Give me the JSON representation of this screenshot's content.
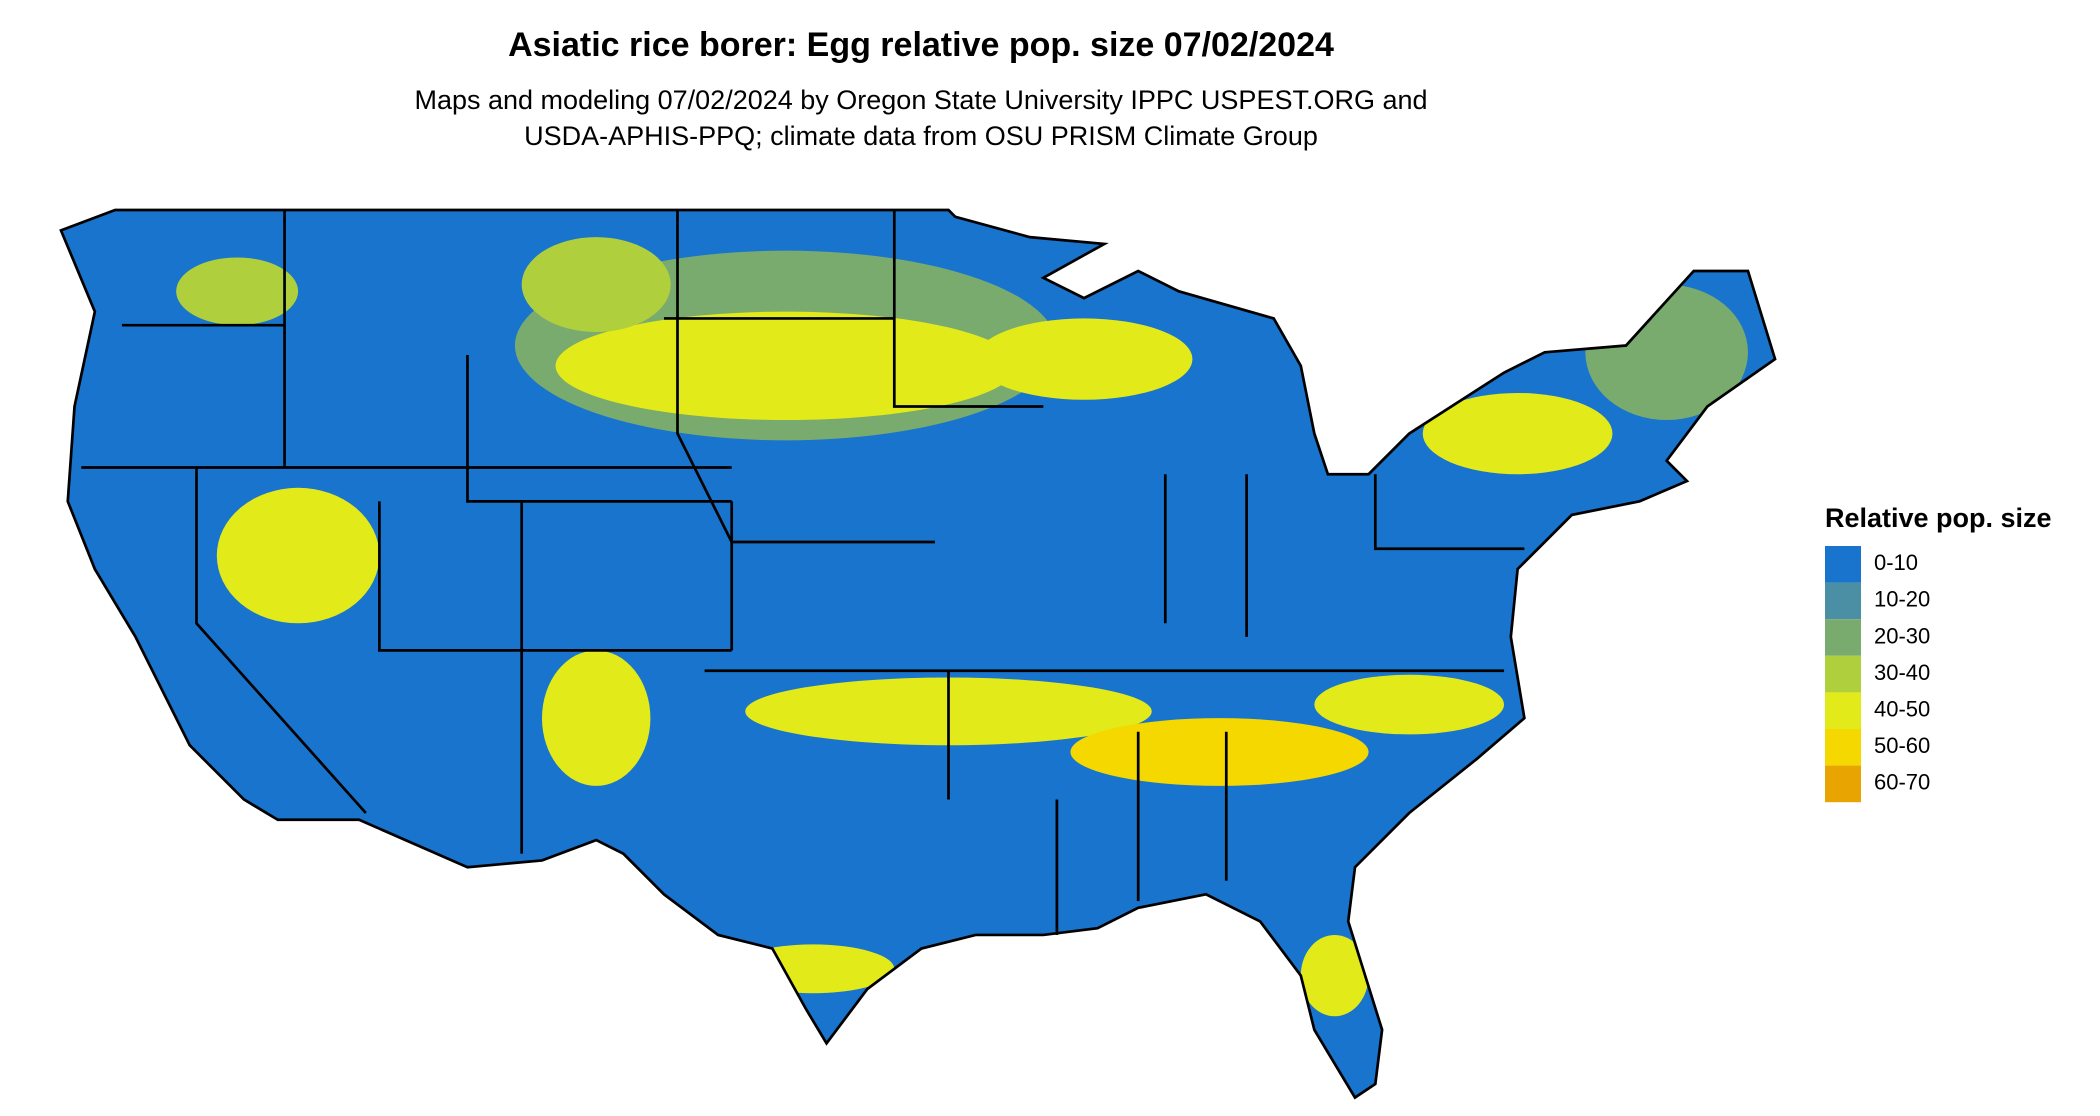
{
  "title": "Asiatic rice borer: Egg relative pop. size 07/02/2024",
  "subtitle": [
    "Maps and modeling 07/02/2024 by Oregon State University IPPC USPEST.ORG and",
    "USDA-APHIS-PPQ; climate data from OSU PRISM Climate Group"
  ],
  "legend": {
    "title": "Relative pop. size",
    "items": [
      {
        "label": "0-10",
        "color": "#1874cd"
      },
      {
        "label": "10-20",
        "color": "#4a8fa3"
      },
      {
        "label": "20-30",
        "color": "#7aab6e"
      },
      {
        "label": "30-40",
        "color": "#b0cf3c"
      },
      {
        "label": "40-50",
        "color": "#e3ea1a"
      },
      {
        "label": "50-60",
        "color": "#f5d800"
      },
      {
        "label": "60-70",
        "color": "#e8a400"
      }
    ]
  }
}
